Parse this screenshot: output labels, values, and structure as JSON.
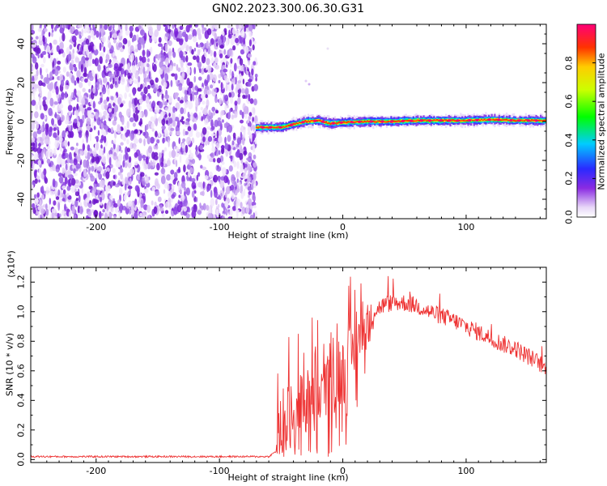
{
  "title": "GN02.2023.300.06.30.G31",
  "chart_data": [
    {
      "type": "heatmap",
      "xlabel": "Height of straight line (km)",
      "ylabel": "Frequency (Hz)",
      "xlim": [
        -253,
        165
      ],
      "ylim": [
        -50,
        50
      ],
      "xticks": [
        -200,
        -100,
        0,
        100
      ],
      "yticks": [
        -40,
        -20,
        0,
        20,
        40
      ],
      "grid": false,
      "noise_region_km": [
        -253,
        -70
      ],
      "signal_line": {
        "start_km": -70,
        "x_km": [
          -70,
          -60,
          -50,
          -40,
          -30,
          -20,
          -10,
          0,
          20,
          40,
          60,
          80,
          100,
          120,
          140,
          165
        ],
        "freq_hz": [
          -3,
          -3,
          -3,
          -1.5,
          0,
          0.5,
          -1,
          -0.5,
          0,
          0,
          0.5,
          0.5,
          0.5,
          1,
          0.5,
          0.5
        ]
      },
      "colorbar": {
        "label": "Normalized spectral amplitude",
        "range": [
          0,
          1
        ],
        "ticks": [
          "0.0",
          "0.2",
          "0.4",
          "0.6",
          "0.8"
        ],
        "colormap": "rainbow"
      }
    },
    {
      "type": "line",
      "xlabel": "Height of straight line (km)",
      "ylabel": "SNR (10 * v/v)",
      "scale_label": "(x10⁴)",
      "xlim": [
        -253,
        165
      ],
      "ylim": [
        -0.02,
        1.3
      ],
      "xticks": [
        -200,
        -100,
        0,
        100
      ],
      "yticks": [
        "0.0",
        "0.2",
        "0.4",
        "0.6",
        "0.8",
        "1.0",
        "1.2"
      ],
      "grid": false,
      "series": [
        {
          "color": "#ee3333",
          "x": [
            -253,
            -200,
            -150,
            -100,
            -70,
            -60,
            -55,
            -50,
            -45,
            -40,
            -35,
            -30,
            -25,
            -20,
            -15,
            -10,
            -5,
            0,
            5,
            10,
            15,
            20,
            25,
            30,
            35,
            40,
            50,
            60,
            70,
            80,
            90,
            100,
            110,
            120,
            130,
            140,
            150,
            160,
            165
          ],
          "values": [
            0.02,
            0.02,
            0.02,
            0.02,
            0.02,
            0.02,
            0.05,
            0.15,
            0.3,
            0.3,
            0.35,
            0.4,
            0.45,
            0.45,
            0.45,
            0.5,
            0.55,
            0.6,
            0.68,
            0.75,
            0.85,
            0.95,
            1.0,
            1.03,
            1.05,
            1.06,
            1.06,
            1.04,
            1.0,
            0.97,
            0.94,
            0.9,
            0.86,
            0.82,
            0.78,
            0.75,
            0.7,
            0.65,
            0.6
          ]
        }
      ]
    }
  ]
}
